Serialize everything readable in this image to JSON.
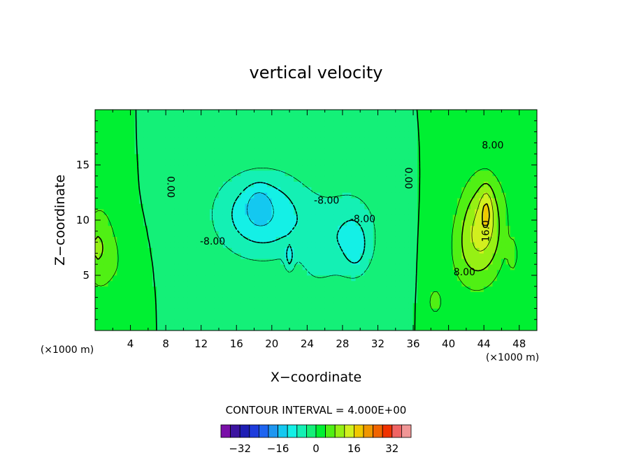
{
  "chart_data": {
    "type": "contour",
    "title": "vertical velocity",
    "xlabel": "X−coordinate",
    "ylabel": "Z−coordinate",
    "x_unit": "(×1000 m)",
    "x_unit_right": "(×1000 m)",
    "xlim": [
      0,
      50
    ],
    "ylim": [
      0,
      20
    ],
    "x_ticks": [
      4,
      8,
      12,
      16,
      20,
      24,
      28,
      32,
      36,
      40,
      44,
      48
    ],
    "y_ticks": [
      5,
      10,
      15
    ],
    "contour_interval_text": "CONTOUR INTERVAL = 4.000E+00",
    "contour_interval": 4,
    "colorbar": {
      "levels": [
        -36,
        -32,
        -28,
        -24,
        -20,
        -16,
        -12,
        -8,
        -4,
        0,
        4,
        8,
        12,
        16,
        20,
        24,
        28,
        32,
        36
      ],
      "colors": [
        "#7a10a8",
        "#3c14a0",
        "#1e1eb4",
        "#1e3cdc",
        "#1e64f0",
        "#1e96f0",
        "#14c8f0",
        "#14f0e6",
        "#14f0b4",
        "#14f078",
        "#00f032",
        "#50f014",
        "#96f014",
        "#d2f01e",
        "#f0c800",
        "#f09600",
        "#f06400",
        "#f03200",
        "#f06464",
        "#f09696"
      ],
      "tick_labels": [
        "−32",
        "−16",
        "0",
        "16",
        "32"
      ],
      "tick_values": [
        -32,
        -16,
        0,
        16,
        32
      ]
    },
    "contour_labels": [
      {
        "text": "0.00",
        "x": 8.2,
        "z": 13.0
      },
      {
        "text": "0.00",
        "x": 35.1,
        "z": 13.8
      },
      {
        "text": "-8.00",
        "x": 13.3,
        "z": 7.8
      },
      {
        "text": "-8.00",
        "x": 26.2,
        "z": 11.5
      },
      {
        "text": "-8.00",
        "x": 30.3,
        "z": 9.8
      },
      {
        "text": "8.00",
        "x": 45.0,
        "z": 16.5
      },
      {
        "text": "16.0",
        "x": 44.6,
        "z": 9.0
      },
      {
        "text": "8.00",
        "x": 41.8,
        "z": 5.0
      }
    ]
  }
}
